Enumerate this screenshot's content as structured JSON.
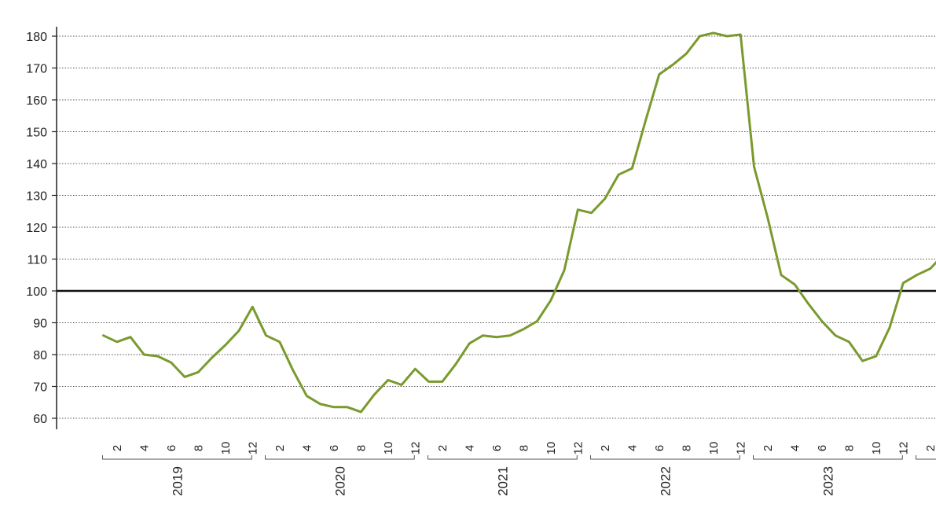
{
  "chart_data": {
    "type": "line",
    "title": "",
    "xlabel": "",
    "ylabel": "",
    "ylim": [
      60,
      180
    ],
    "y_ticks": [
      60,
      70,
      80,
      90,
      100,
      110,
      120,
      130,
      140,
      150,
      160,
      170,
      180
    ],
    "reference_line": 100,
    "grid": "horizontal-dotted",
    "line_color": "#7a9a2e",
    "years": [
      "2019",
      "2020",
      "2021",
      "2022",
      "2023"
    ],
    "month_ticks": [
      "2",
      "4",
      "6",
      "8",
      "10",
      "12"
    ],
    "last_partial_tick": "2",
    "series": [
      {
        "values": [
          86,
          84,
          85.5,
          80,
          79.5,
          77.5,
          73,
          74.5,
          79,
          83,
          87.5,
          95,
          86,
          84,
          75,
          67,
          64.5,
          63.5,
          63.5,
          62,
          67.5,
          72,
          70.5,
          75.5,
          71.5,
          71.5,
          77,
          83.5,
          86,
          85.5,
          86,
          88,
          90.5,
          97,
          106.5,
          125.5,
          124.5,
          129,
          136.5,
          138.5,
          153.5,
          168,
          171,
          174.5,
          180,
          181,
          180,
          180.5,
          139,
          123,
          105,
          102,
          96,
          90.5,
          86,
          84,
          78,
          79.5,
          88.5,
          102.5,
          105,
          107,
          111.5
        ]
      }
    ]
  }
}
